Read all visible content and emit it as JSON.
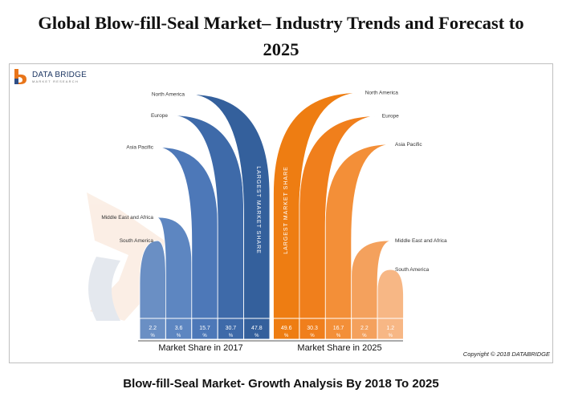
{
  "title_line1": "Global Blow-fill-Seal Market– Industry Trends and Forecast to",
  "title_line2": "2025",
  "logo": {
    "name": "DATA BRIDGE",
    "tagline": "MARKET RESEARCH"
  },
  "copyright": "Copyright © 2018 DATABRIDGE",
  "bottom_caption": "Blow-fill-Seal Market- Growth Analysis By 2018 To 2025",
  "colors": {
    "blue": [
      "#6a8fc4",
      "#5d86c1",
      "#4d78b8",
      "#3e6aa9",
      "#34609c"
    ],
    "orange": [
      "#ee7d12",
      "#f07f1c",
      "#f38f38",
      "#f4a15d",
      "#f7b785"
    ]
  },
  "chart_data": {
    "type": "bar",
    "groups": [
      {
        "label": "Market Share in 2017",
        "series": [
          {
            "name": "South America",
            "value": 2.2
          },
          {
            "name": "Middle East and Africa",
            "value": 3.6
          },
          {
            "name": "Asia Pacific",
            "value": 15.7
          },
          {
            "name": "Europe",
            "value": 30.7
          },
          {
            "name": "North America",
            "value": 47.8
          }
        ],
        "value_labels": [
          "2.2%",
          "3.6%",
          "15.7%",
          "30.7%",
          "47.8%"
        ],
        "highlight_label": "LARGEST MARKET SHARE"
      },
      {
        "label": "Market Share in 2025",
        "series": [
          {
            "name": "North America",
            "value": 49.6
          },
          {
            "name": "Europe",
            "value": 30.3
          },
          {
            "name": "Asia Pacific",
            "value": 16.7
          },
          {
            "name": "Middle East and Africa",
            "value": 2.2
          },
          {
            "name": "South America",
            "value": 1.2
          }
        ],
        "value_labels": [
          "49.6%",
          "30.3%",
          "16.7%",
          "2.2%",
          "1.2%"
        ],
        "highlight_label": "LARGEST MARKET SHARE"
      }
    ]
  }
}
